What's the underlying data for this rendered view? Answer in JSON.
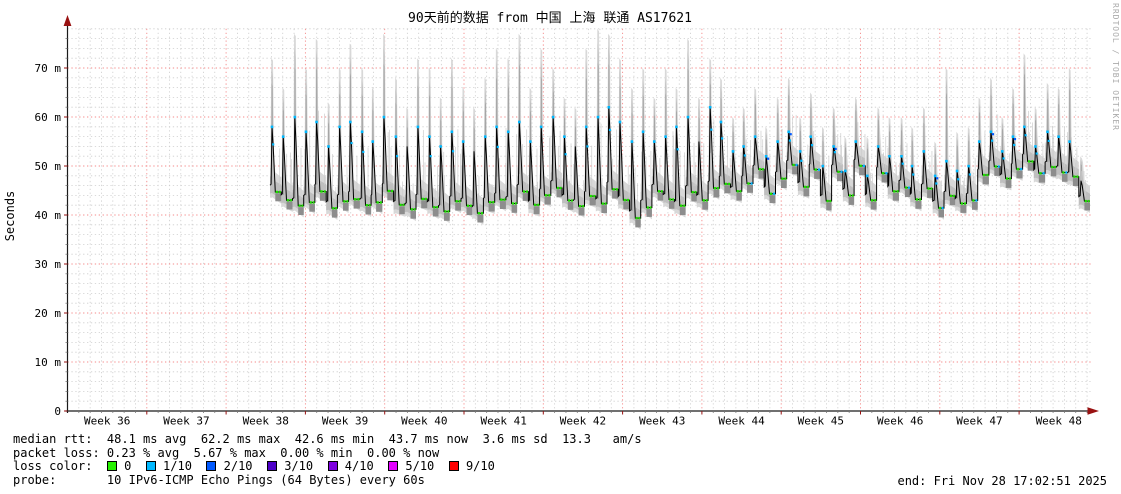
{
  "title": "90天前的数据 from 中国 上海 联通 AS17621",
  "watermark": "RRDTOOL / TOBI OETIKER",
  "end_time": "end: Fri Nov 28 17:02:51 2025",
  "axes": {
    "ylabel": "Seconds",
    "yticks": [
      {
        "v": 0,
        "label": "0"
      },
      {
        "v": 10,
        "label": "10 m"
      },
      {
        "v": 20,
        "label": "20 m"
      },
      {
        "v": 30,
        "label": "30 m"
      },
      {
        "v": 40,
        "label": "40 m"
      },
      {
        "v": 50,
        "label": "50 m"
      },
      {
        "v": 60,
        "label": "60 m"
      },
      {
        "v": 70,
        "label": "70 m"
      }
    ],
    "xticks": [
      "Week 36",
      "Week 37",
      "Week 38",
      "Week 39",
      "Week 40",
      "Week 41",
      "Week 42",
      "Week 43",
      "Week 44",
      "Week 45",
      "Week 46",
      "Week 47",
      "Week 48"
    ]
  },
  "legend": {
    "median_line": "median rtt:  48.1 ms avg  62.2 ms max  42.6 ms min  43.7 ms now  3.6 ms sd  13.3   am/s",
    "loss_line": "packet loss: 0.23 % avg  5.67 % max  0.00 % min  0.00 % now",
    "loss_color_prefix": "loss color:  ",
    "loss_colors": [
      {
        "label": "0",
        "color": "#26f000"
      },
      {
        "label": "1/10",
        "color": "#00b8ff"
      },
      {
        "label": "2/10",
        "color": "#0059ff"
      },
      {
        "label": "3/10",
        "color": "#4d00c8"
      },
      {
        "label": "4/10",
        "color": "#7e00e0"
      },
      {
        "label": "5/10",
        "color": "#e400ff"
      },
      {
        "label": "9/10",
        "color": "#ff0000"
      }
    ],
    "probe_line": "probe:       10 IPv6-ICMP Echo Pings (64 Bytes) every 60s"
  },
  "colors": {
    "major_grid": "#f58a8a",
    "minor_grid": "#cdcdcd",
    "axis": "#1a1a1a",
    "arrow": "#991111",
    "smoke_light": "#d8d8d8",
    "smoke_mid": "#bfbfbf",
    "smoke_dark": "#a2a2a2",
    "smoke_shadow": "#8d8d8d",
    "median": "#000000",
    "loss0_green": "#1fe000",
    "loss1_cyan": "#00b8ff",
    "loss2_blue": "#0059ff"
  },
  "chart_data": {
    "type": "line",
    "subtype": "smokeping-latency-with-smoke-band",
    "title": "90天前的数据 from 中国 上海 联通 AS17621",
    "xlabel": "",
    "ylabel": "Seconds",
    "y_units": "milliseconds (m = milli)",
    "ylim": [
      0,
      78
    ],
    "x_categories": [
      "Week 36",
      "Week 37",
      "Week 38",
      "Week 39",
      "Week 40",
      "Week 41",
      "Week 42",
      "Week 43",
      "Week 44",
      "Week 45",
      "Week 46",
      "Week 47",
      "Week 48"
    ],
    "data_start_week": "Week 38",
    "grid": "on (minor 2ms / daily, major 10ms / weekly red dotted)",
    "legend_position": "bottom-left text block",
    "stats": {
      "median_rtt": {
        "avg": "48.1 ms",
        "max": "62.2 ms",
        "min": "42.6 ms",
        "now": "43.7 ms",
        "sd": "3.6 ms",
        "am_per_s": "13.3"
      },
      "packet_loss": {
        "avg": "0.23 %",
        "max": "5.67 %",
        "min": "0.00 %",
        "now": "0.00 %"
      }
    },
    "day_fields": [
      "median_base_ms",
      "median_peak_ms",
      "smoke_max_ms",
      "loss_level(0=none,1=peak loss dots,2=plateau loss too)"
    ],
    "days": [
      [
        46,
        58,
        72,
        1
      ],
      [
        44,
        56,
        66,
        1
      ],
      [
        43,
        60,
        77,
        1
      ],
      [
        44,
        57,
        70,
        1
      ],
      [
        46,
        59,
        76,
        1
      ],
      [
        43,
        54,
        63,
        1
      ],
      [
        44,
        58,
        70,
        1
      ],
      [
        45,
        59,
        75,
        1
      ],
      [
        43,
        57,
        70,
        1
      ],
      [
        44,
        55,
        66,
        1
      ],
      [
        46,
        60,
        77,
        1
      ],
      [
        43,
        56,
        68,
        1
      ],
      [
        42,
        54,
        62,
        0
      ],
      [
        44,
        58,
        72,
        1
      ],
      [
        43,
        56,
        70,
        1
      ],
      [
        42,
        54,
        64,
        1
      ],
      [
        44,
        57,
        72,
        1
      ],
      [
        43,
        55,
        66,
        1
      ],
      [
        42,
        53,
        62,
        0
      ],
      [
        43,
        56,
        68,
        1
      ],
      [
        44,
        58,
        74,
        1
      ],
      [
        44,
        57,
        72,
        1
      ],
      [
        46,
        59,
        77,
        1
      ],
      [
        43,
        55,
        66,
        1
      ],
      [
        45,
        58,
        74,
        1
      ],
      [
        47,
        60,
        70,
        1
      ],
      [
        44,
        56,
        64,
        1
      ],
      [
        43,
        54,
        62,
        0
      ],
      [
        45,
        58,
        74,
        1
      ],
      [
        43,
        60,
        78,
        1
      ],
      [
        47,
        62,
        77,
        1
      ],
      [
        44,
        59,
        72,
        1
      ],
      [
        41,
        55,
        66,
        1
      ],
      [
        43,
        57,
        70,
        1
      ],
      [
        46,
        55,
        64,
        1
      ],
      [
        44,
        56,
        70,
        1
      ],
      [
        43,
        58,
        66,
        1
      ],
      [
        46,
        60,
        76,
        1
      ],
      [
        44,
        55,
        64,
        0
      ],
      [
        47,
        62,
        72,
        1
      ],
      [
        48,
        59,
        68,
        1
      ],
      [
        46,
        53,
        60,
        1
      ],
      [
        48,
        54,
        62,
        2
      ],
      [
        50,
        56,
        66,
        1
      ],
      [
        46,
        52,
        58,
        2
      ],
      [
        49,
        55,
        64,
        1
      ],
      [
        51,
        57,
        68,
        2
      ],
      [
        47,
        53,
        60,
        1
      ],
      [
        50,
        56,
        65,
        2
      ],
      [
        44,
        50,
        58,
        1
      ],
      [
        50,
        54,
        62,
        2
      ],
      [
        45,
        49,
        56,
        1
      ],
      [
        51,
        55,
        64,
        2
      ],
      [
        44,
        48,
        56,
        1
      ],
      [
        50,
        54,
        62,
        2
      ],
      [
        46,
        52,
        60,
        1
      ],
      [
        47,
        52,
        60,
        2
      ],
      [
        44,
        50,
        58,
        1
      ],
      [
        46,
        53,
        62,
        1
      ],
      [
        43,
        48,
        55,
        2
      ],
      [
        45,
        51,
        70,
        1
      ],
      [
        43,
        49,
        57,
        1
      ],
      [
        44,
        50,
        58,
        2
      ],
      [
        49,
        55,
        64,
        1
      ],
      [
        51,
        57,
        68,
        2
      ],
      [
        48,
        53,
        60,
        1
      ],
      [
        50,
        56,
        66,
        2
      ],
      [
        52,
        58,
        73,
        1
      ],
      [
        49,
        54,
        62,
        2
      ],
      [
        51,
        57,
        67,
        1
      ],
      [
        50,
        56,
        66,
        2
      ],
      [
        49,
        55,
        70,
        1
      ],
      [
        44,
        47,
        52,
        0
      ]
    ]
  }
}
